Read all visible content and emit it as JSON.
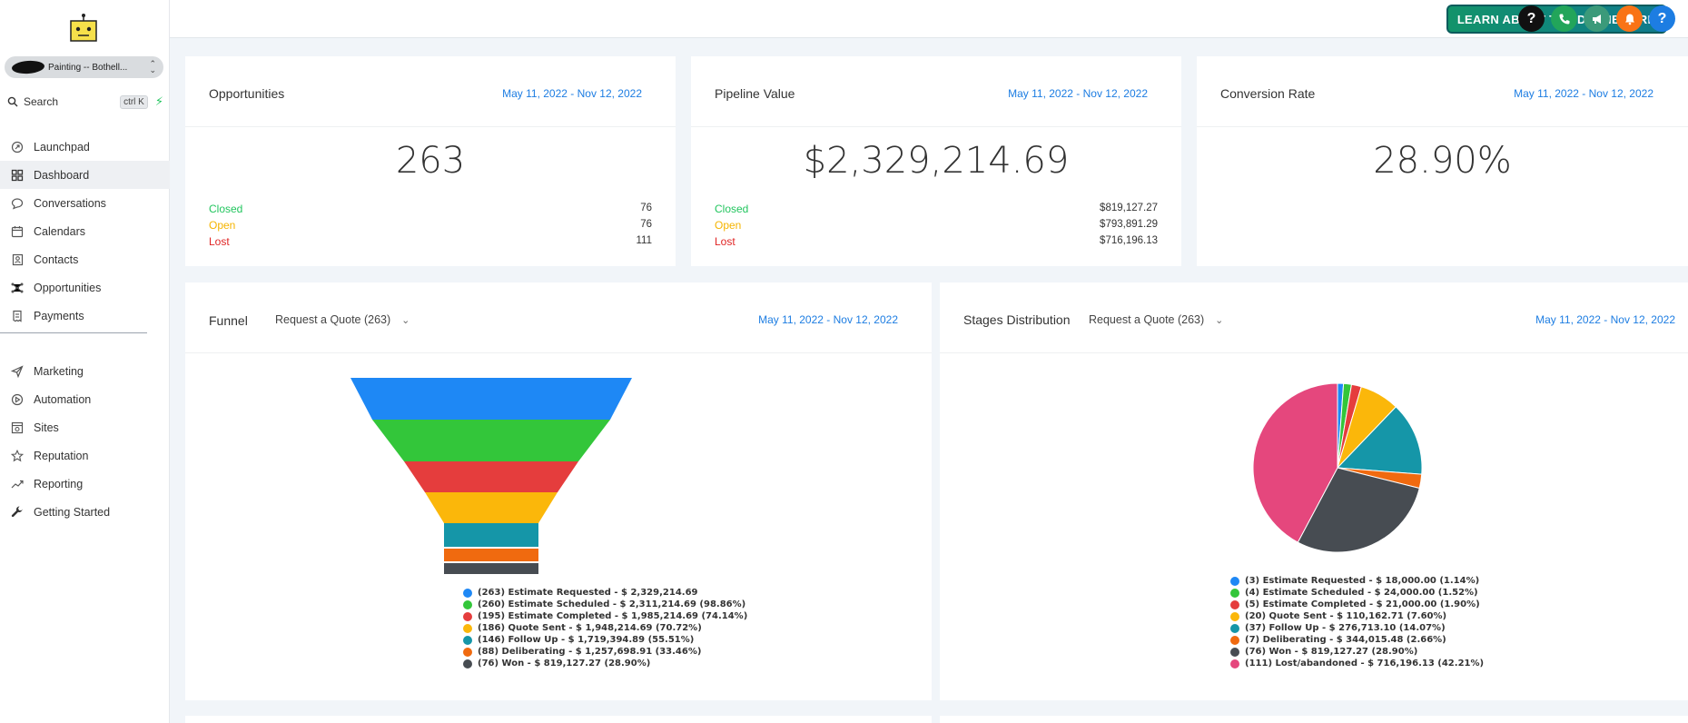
{
  "sidebar": {
    "account_name": "Painting -- Bothell...",
    "search_label": "Search",
    "search_shortcut": "ctrl K",
    "nav_main": [
      {
        "label": "Launchpad",
        "icon": "rocket-icon"
      },
      {
        "label": "Dashboard",
        "icon": "grid-icon",
        "active": true
      },
      {
        "label": "Conversations",
        "icon": "chat-icon"
      },
      {
        "label": "Calendars",
        "icon": "calendar-icon"
      },
      {
        "label": "Contacts",
        "icon": "contacts-icon"
      },
      {
        "label": "Opportunities",
        "icon": "network-icon"
      },
      {
        "label": "Payments",
        "icon": "receipt-icon"
      }
    ],
    "nav_secondary": [
      {
        "label": "Marketing",
        "icon": "send-icon"
      },
      {
        "label": "Automation",
        "icon": "automation-icon"
      },
      {
        "label": "Sites",
        "icon": "globe-icon"
      },
      {
        "label": "Reputation",
        "icon": "star-icon"
      },
      {
        "label": "Reporting",
        "icon": "trend-icon"
      },
      {
        "label": "Getting Started",
        "icon": "wrench-icon"
      }
    ]
  },
  "topbar": {
    "learn_button": "LEARN ABOUT THE DASHBOARD",
    "help_icon_label": "?",
    "help_icon2_label": "?",
    "colors": {
      "help": "#111111",
      "phone": "#22a55a",
      "megaphone": "#3b9a7a",
      "bell": "#f97316",
      "help2": "#1d7de2"
    }
  },
  "opportunities": {
    "title": "Opportunities",
    "date_range": "May 11, 2022 - Nov 12, 2022",
    "total": "263",
    "closed_label": "Closed",
    "closed_value": "76",
    "open_label": "Open",
    "open_value": "76",
    "lost_label": "Lost",
    "lost_value": "111"
  },
  "pipeline": {
    "title": "Pipeline Value",
    "date_range": "May 11, 2022 - Nov 12, 2022",
    "total": "$2,329,214.69",
    "closed_label": "Closed",
    "closed_value": "$819,127.27",
    "open_label": "Open",
    "open_value": "$793,891.29",
    "lost_label": "Lost",
    "lost_value": "$716,196.13"
  },
  "conversion": {
    "title": "Conversion Rate",
    "date_range": "May 11, 2022 - Nov 12, 2022",
    "total": "28.90%"
  },
  "funnel": {
    "title": "Funnel",
    "pipeline_select": "Request a Quote (263)",
    "date_range": "May 11, 2022 - Nov 12, 2022"
  },
  "stages": {
    "title": "Stages Distribution",
    "pipeline_select": "Request a Quote (263)",
    "date_range": "May 11, 2022 - Nov 12, 2022"
  },
  "chart_data": [
    {
      "type": "funnel",
      "stages": [
        {
          "name": "Estimate Requested",
          "count": 263,
          "value": 2329214.69,
          "percent": 100,
          "color": "#1e88f5",
          "label": "(263) Estimate Requested - $ 2,329,214.69"
        },
        {
          "name": "Estimate Scheduled",
          "count": 260,
          "value": 2311214.69,
          "percent": 98.86,
          "color": "#33c63a",
          "label": "(260) Estimate Scheduled - $ 2,311,214.69 (98.86%)"
        },
        {
          "name": "Estimate Completed",
          "count": 195,
          "value": 1985214.69,
          "percent": 74.14,
          "color": "#e53d3d",
          "label": "(195) Estimate Completed - $ 1,985,214.69 (74.14%)"
        },
        {
          "name": "Quote Sent",
          "count": 186,
          "value": 1948214.69,
          "percent": 70.72,
          "color": "#fbb70a",
          "label": "(186) Quote Sent - $ 1,948,214.69 (70.72%)"
        },
        {
          "name": "Follow Up",
          "count": 146,
          "value": 1719394.89,
          "percent": 55.51,
          "color": "#1596a8",
          "label": "(146) Follow Up - $ 1,719,394.89 (55.51%)"
        },
        {
          "name": "Deliberating",
          "count": 88,
          "value": 1257698.91,
          "percent": 33.46,
          "color": "#f06a0f",
          "label": "(88) Deliberating - $ 1,257,698.91 (33.46%)"
        },
        {
          "name": "Won",
          "count": 76,
          "value": 819127.27,
          "percent": 28.9,
          "color": "#474c52",
          "label": "(76) Won - $ 819,127.27 (28.90%)"
        }
      ]
    },
    {
      "type": "pie",
      "slices": [
        {
          "name": "Estimate Requested",
          "count": 3,
          "value": 18000.0,
          "percent": 1.14,
          "color": "#1e88f5",
          "label": "(3) Estimate Requested - $ 18,000.00 (1.14%)"
        },
        {
          "name": "Estimate Scheduled",
          "count": 4,
          "value": 24000.0,
          "percent": 1.52,
          "color": "#33c63a",
          "label": "(4) Estimate Scheduled - $ 24,000.00 (1.52%)"
        },
        {
          "name": "Estimate Completed",
          "count": 5,
          "value": 21000.0,
          "percent": 1.9,
          "color": "#e53d3d",
          "label": "(5) Estimate Completed - $ 21,000.00 (1.90%)"
        },
        {
          "name": "Quote Sent",
          "count": 20,
          "value": 110162.71,
          "percent": 7.6,
          "color": "#fbb70a",
          "label": "(20) Quote Sent - $ 110,162.71 (7.60%)"
        },
        {
          "name": "Follow Up",
          "count": 37,
          "value": 276713.1,
          "percent": 14.07,
          "color": "#1596a8",
          "label": "(37) Follow Up - $ 276,713.10 (14.07%)"
        },
        {
          "name": "Deliberating",
          "count": 7,
          "value": 344015.48,
          "percent": 2.66,
          "color": "#f06a0f",
          "label": "(7) Deliberating - $ 344,015.48 (2.66%)"
        },
        {
          "name": "Won",
          "count": 76,
          "value": 819127.27,
          "percent": 28.9,
          "color": "#474c52",
          "label": "(76) Won - $ 819,127.27 (28.90%)"
        },
        {
          "name": "Lost/abandoned",
          "count": 111,
          "value": 716196.13,
          "percent": 42.21,
          "color": "#e5477d",
          "label": "(111) Lost/abandoned - $ 716,196.13 (42.21%)"
        }
      ]
    }
  ]
}
